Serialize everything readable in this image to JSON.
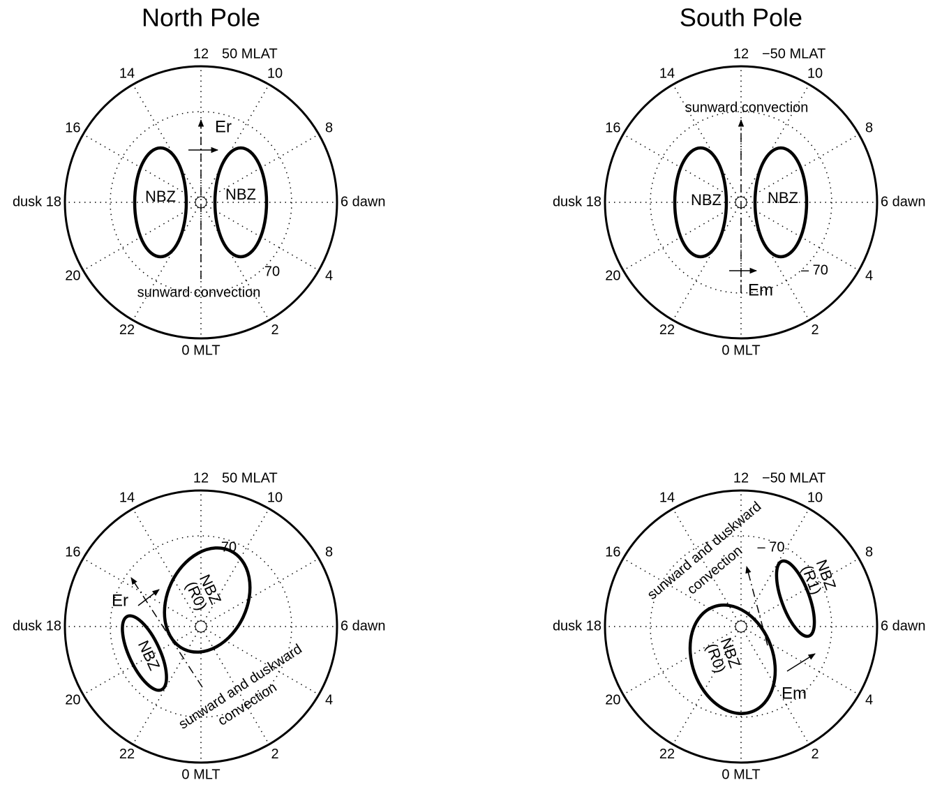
{
  "titles": [
    "North Pole",
    "South Pole"
  ],
  "panels": [
    {
      "hours": [
        "12",
        "10",
        "8",
        "6 dawn",
        "4",
        "2",
        "0 MLT",
        "22",
        "20",
        "dusk 18",
        "16",
        "14"
      ],
      "mlat": "50 MLAT",
      "lat70": "70",
      "zones": [
        [
          "NBZ"
        ],
        [
          "NBZ"
        ]
      ],
      "field": "Er",
      "convection": [
        "sunward convection"
      ]
    },
    {
      "hours": [
        "12",
        "10",
        "8",
        "6 dawn",
        "4",
        "2",
        "0 MLT",
        "22",
        "20",
        "dusk 18",
        "16",
        "14"
      ],
      "mlat": "−50 MLAT",
      "lat70": "– 70",
      "zones": [
        [
          "NBZ"
        ],
        [
          "NBZ"
        ]
      ],
      "field": "Em",
      "convection": [
        "sunward convection"
      ]
    },
    {
      "hours": [
        "12",
        "10",
        "8",
        "6 dawn",
        "4",
        "2",
        "0 MLT",
        "22",
        "20",
        "dusk 18",
        "16",
        "14"
      ],
      "mlat": "50 MLAT",
      "lat70": "70",
      "zones": [
        [
          "NBZ",
          "(R0)"
        ],
        [
          "NBZ"
        ]
      ],
      "field": "Er",
      "convection": [
        "sunward and duskward",
        "convection"
      ]
    },
    {
      "hours": [
        "12",
        "10",
        "8",
        "6 dawn",
        "4",
        "2",
        "0 MLT",
        "22",
        "20",
        "dusk 18",
        "16",
        "14"
      ],
      "mlat": "−50 MLAT",
      "lat70": "– 70",
      "zones": [
        [
          "NBZ",
          "(R0)"
        ],
        [
          "NBZ",
          "(R1)"
        ]
      ],
      "field": "Em",
      "convection": [
        "sunward and duskward",
        "convection"
      ]
    }
  ]
}
